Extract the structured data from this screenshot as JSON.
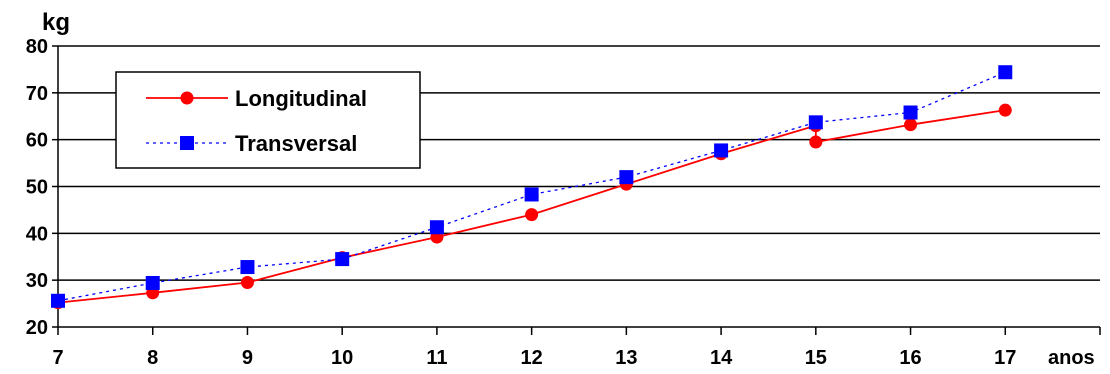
{
  "chart_data": {
    "type": "line",
    "ylabel": "kg",
    "xlabel": "anos",
    "x": [
      7,
      8,
      9,
      10,
      11,
      12,
      13,
      14,
      15,
      16,
      17
    ],
    "xlim": [
      7,
      18
    ],
    "ylim": [
      20,
      80
    ],
    "yticks": [
      20,
      30,
      40,
      50,
      60,
      70,
      80
    ],
    "grid": true,
    "legend_position": "top-left",
    "series": [
      {
        "name": "Longitudinal",
        "color": "#ff0000",
        "marker": "circle",
        "line_style": "solid",
        "points": [
          [
            7,
            25.2
          ],
          [
            8,
            27.3
          ],
          [
            9,
            29.5
          ],
          [
            10,
            34.8
          ],
          [
            11,
            39.2
          ],
          [
            12,
            44.0
          ],
          [
            13,
            50.5
          ],
          [
            14,
            57.0
          ],
          [
            15,
            63.0
          ],
          [
            15,
            59.5
          ],
          [
            16,
            63.2
          ],
          [
            17,
            66.3
          ]
        ]
      },
      {
        "name": "Transversal",
        "color": "#0000ff",
        "marker": "square",
        "line_style": "dotted",
        "points": [
          [
            7,
            25.6
          ],
          [
            8,
            29.4
          ],
          [
            9,
            32.8
          ],
          [
            10,
            34.5
          ],
          [
            11,
            41.3
          ],
          [
            12,
            48.3
          ],
          [
            13,
            52.0
          ],
          [
            14,
            57.7
          ],
          [
            15,
            63.7
          ],
          [
            16,
            65.8
          ],
          [
            17,
            74.4
          ]
        ]
      }
    ]
  }
}
